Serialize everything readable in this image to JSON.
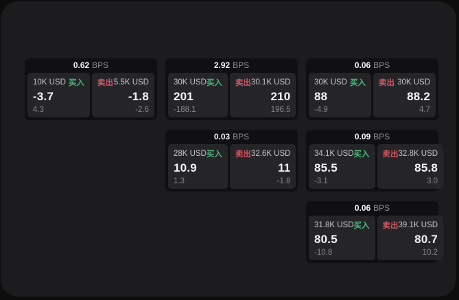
{
  "colors": {
    "buy_green": "#4ab87c",
    "sell_red": "#cf5560",
    "window_bg": "#1c1c1e",
    "card_bg": "#101012",
    "panel_bg": "#252528"
  },
  "labels": {
    "bps_unit": "BPS",
    "buy_action": "买入",
    "sell_action": "卖出"
  },
  "cards": [
    {
      "bps": "0.62",
      "row": 1,
      "col": 1,
      "buy": {
        "amount": "10K USD",
        "price": "-3.7",
        "delta": "4.3"
      },
      "sell": {
        "amount": "5.5K USD",
        "price": "-1.8",
        "delta": "-2.6"
      }
    },
    {
      "bps": "2.92",
      "row": 1,
      "col": 2,
      "buy": {
        "amount": "30K USD",
        "price": "201",
        "delta": "-188.1"
      },
      "sell": {
        "amount": "30.1K USD",
        "price": "210",
        "delta": "196.5"
      }
    },
    {
      "bps": "0.06",
      "row": 1,
      "col": 3,
      "buy": {
        "amount": "30K USD",
        "price": "88",
        "delta": "-4.9"
      },
      "sell": {
        "amount": "30K USD",
        "price": "88.2",
        "delta": "4.7"
      }
    },
    {
      "bps": "0.03",
      "row": 2,
      "col": 2,
      "buy": {
        "amount": "28K USD",
        "price": "10.9",
        "delta": "1.3"
      },
      "sell": {
        "amount": "32.6K USD",
        "price": "11",
        "delta": "-1.8"
      }
    },
    {
      "bps": "0.09",
      "row": 2,
      "col": 3,
      "buy": {
        "amount": "34.1K USD",
        "price": "85.5",
        "delta": "-3.1"
      },
      "sell": {
        "amount": "32.8K USD",
        "price": "85.8",
        "delta": "3.0"
      }
    },
    {
      "bps": "0.06",
      "row": 3,
      "col": 3,
      "buy": {
        "amount": "31.8K USD",
        "price": "80.5",
        "delta": "-10.8"
      },
      "sell": {
        "amount": "39.1K USD",
        "price": "80.7",
        "delta": "10.2"
      }
    }
  ]
}
